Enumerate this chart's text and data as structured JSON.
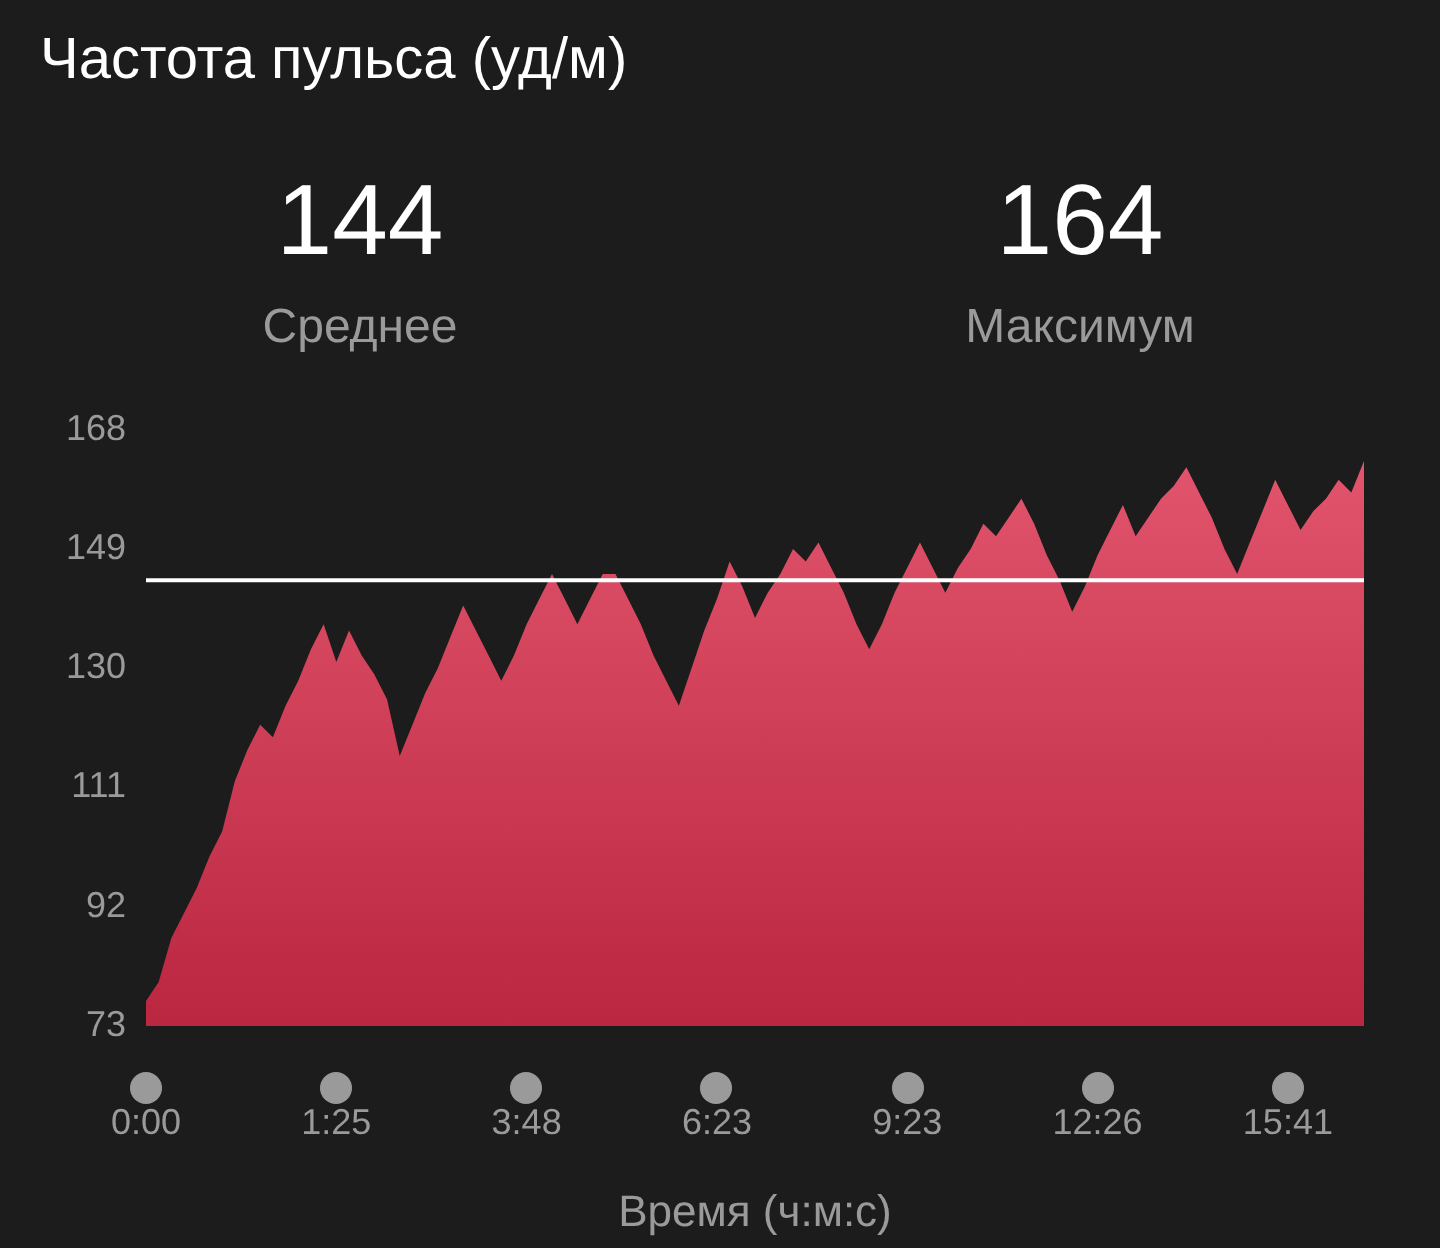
{
  "chart_data": {
    "type": "area",
    "title": "Частота пульса (уд/м)",
    "xlabel": "Время (ч:м:с)",
    "annotations": [
      "144",
      "Среднее",
      "164",
      "Максимум"
    ],
    "categories": [
      "0:00",
      null,
      null,
      null,
      null,
      null,
      null,
      null,
      null,
      null,
      null,
      null,
      null,
      null,
      null,
      "1:25",
      null,
      null,
      null,
      null,
      null,
      null,
      null,
      null,
      null,
      null,
      null,
      null,
      null,
      null,
      "3:48",
      null,
      null,
      null,
      null,
      null,
      null,
      null,
      null,
      null,
      null,
      null,
      null,
      null,
      null,
      "6:23",
      null,
      null,
      null,
      null,
      null,
      null,
      null,
      null,
      null,
      null,
      null,
      null,
      null,
      null,
      "9:23",
      null,
      null,
      null,
      null,
      null,
      null,
      null,
      null,
      null,
      null,
      null,
      null,
      null,
      null,
      "12:26",
      null,
      null,
      null,
      null,
      null,
      null,
      null,
      null,
      null,
      null,
      null,
      null,
      null,
      null,
      "15:41",
      null,
      null,
      null,
      null,
      null,
      null
    ],
    "series": [
      {
        "color": "#dc2d4b",
        "values": [
          77,
          80,
          87,
          91,
          95,
          100,
          104,
          112,
          117,
          121,
          119,
          124,
          128,
          133,
          137,
          131,
          136,
          132,
          129,
          125,
          116,
          121,
          126,
          130,
          135,
          140,
          136,
          132,
          128,
          132,
          137,
          141,
          145,
          141,
          137,
          141,
          145,
          145,
          141,
          137,
          132,
          128,
          124,
          130,
          136,
          141,
          147,
          143,
          138,
          142,
          145,
          149,
          147,
          150,
          146,
          142,
          137,
          133,
          137,
          142,
          146,
          150,
          146,
          142,
          146,
          149,
          153,
          151,
          154,
          157,
          153,
          148,
          144,
          139,
          143,
          148,
          152,
          156,
          151,
          154,
          157,
          159,
          162,
          158,
          154,
          149,
          145,
          150,
          155,
          160,
          156,
          152,
          155,
          157,
          160,
          158,
          163
        ]
      }
    ],
    "ylim": [
      73,
      168
    ],
    "yticks": [
      73,
      92,
      111,
      130,
      149,
      168
    ],
    "ref_lines": [
      {
        "axis": "y",
        "value": 144,
        "color": "#ffffff"
      }
    ],
    "grid": false,
    "legend": false
  }
}
